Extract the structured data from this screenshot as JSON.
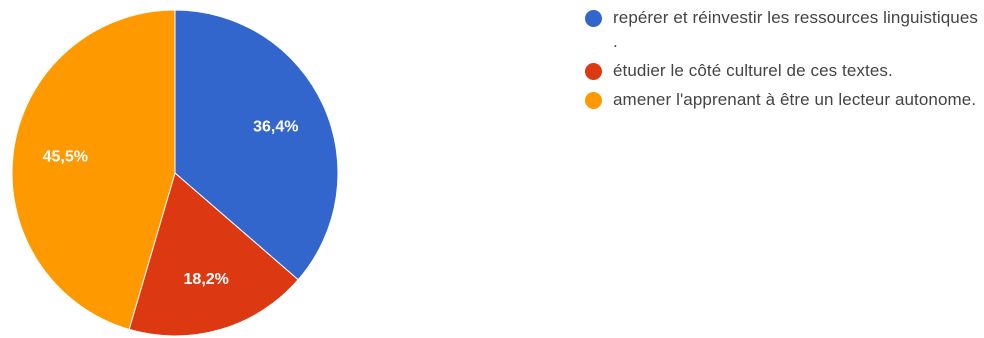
{
  "chart_data": {
    "type": "pie",
    "title": "",
    "start": "top",
    "direction": "clockwise",
    "slices": [
      {
        "label": "repérer et réinvestir les ressources linguistiques .",
        "value": 36.4,
        "display": "36,4%",
        "color": "#3366cc"
      },
      {
        "label": "étudier le côté culturel de ces textes.",
        "value": 18.2,
        "display": "18,2%",
        "color": "#dc3912"
      },
      {
        "label": "amener l'apprenant à être un lecteur autonome.",
        "value": 45.5,
        "display": "45,5%",
        "color": "#ff9900"
      }
    ],
    "legend_position": "right"
  }
}
